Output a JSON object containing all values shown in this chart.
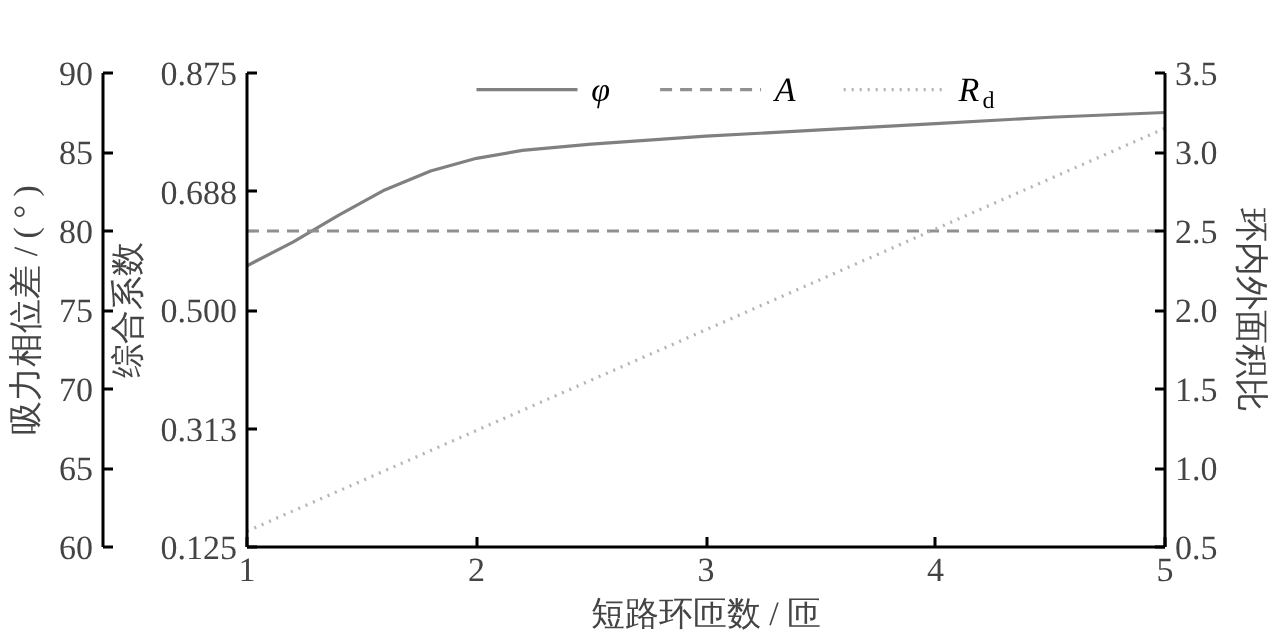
{
  "chart_data": {
    "type": "line",
    "xlabel": "短路环匝数 / 匝",
    "y3label": "吸力相位差 / ( ° )",
    "ylabel": "综合系数",
    "y2label": "环内外面积比",
    "xlim": [
      1,
      5
    ],
    "xticks": [
      1,
      2,
      3,
      4,
      5
    ],
    "y3lim": [
      60,
      90
    ],
    "y3ticks": [
      60,
      65,
      70,
      75,
      80,
      85,
      90
    ],
    "ylim": [
      0.125,
      0.875
    ],
    "yticks": [
      {
        "value": 0.125,
        "label": "0.125"
      },
      {
        "value": 0.3125,
        "label": "0.313"
      },
      {
        "value": 0.5,
        "label": "0.500"
      },
      {
        "value": 0.6875,
        "label": "0.688"
      },
      {
        "value": 0.875,
        "label": "0.875"
      }
    ],
    "y2lim": [
      0.5,
      3.5
    ],
    "y2ticks": [
      {
        "value": 0.5,
        "label": "0.5"
      },
      {
        "value": 1,
        "label": "1.0"
      },
      {
        "value": 1.5,
        "label": "1.5"
      },
      {
        "value": 2,
        "label": "2.0"
      },
      {
        "value": 2.5,
        "label": "2.5"
      },
      {
        "value": 3,
        "label": "3.0"
      },
      {
        "value": 3.5,
        "label": "3.5"
      }
    ],
    "series": [
      {
        "name": "φ",
        "color": "#808080",
        "axis": "y3",
        "line_style": "solid",
        "x": [
          1,
          1.2,
          1.4,
          1.6,
          1.8,
          2,
          2.2,
          2.5,
          3,
          3.5,
          4,
          4.5,
          5
        ],
        "values": [
          77.8,
          79.3,
          81.0,
          82.6,
          83.8,
          84.6,
          85.1,
          85.5,
          86.0,
          86.4,
          86.8,
          87.2,
          87.5
        ]
      },
      {
        "name": "A",
        "color": "#909090",
        "axis": "y",
        "line_style": "dashed",
        "x": [
          1,
          5
        ],
        "values": [
          0.625,
          0.625
        ]
      },
      {
        "name": "R$_{d}$",
        "color": "#b4b4b4",
        "axis": "y2",
        "line_style": "dotted",
        "x": [
          1,
          5
        ],
        "values": [
          0.6,
          3.15
        ]
      }
    ],
    "legend": "top",
    "grid": false,
    "marker": "none"
  }
}
